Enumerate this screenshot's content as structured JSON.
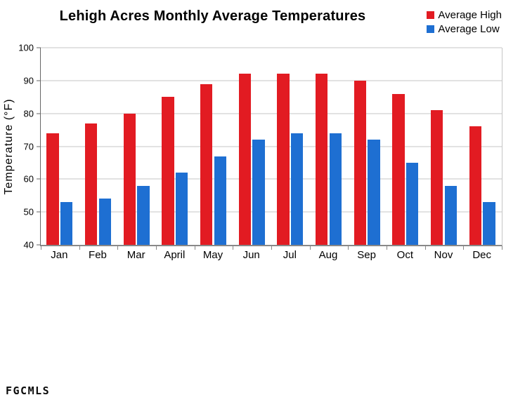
{
  "watermark": "FGCMLS",
  "chart_data": {
    "type": "bar",
    "title": "Lehigh Acres Monthly Average Temperatures",
    "categories": [
      "Jan",
      "Feb",
      "Mar",
      "April",
      "May",
      "Jun",
      "Jul",
      "Aug",
      "Sep",
      "Oct",
      "Nov",
      "Dec"
    ],
    "series": [
      {
        "name": "Average High",
        "color": "#e21b22",
        "values": [
          74,
          77,
          80,
          85,
          89,
          92,
          92,
          92,
          90,
          86,
          81,
          76
        ]
      },
      {
        "name": "Average Low",
        "color": "#1e6fd2",
        "values": [
          53,
          54,
          58,
          62,
          67,
          72,
          74,
          74,
          72,
          65,
          58,
          53
        ]
      }
    ],
    "xlabel": "",
    "ylabel": "Temperature (°F)",
    "ylim": [
      40,
      100
    ],
    "ytick_step": 10,
    "grid": true,
    "legend_position": "top-right"
  }
}
